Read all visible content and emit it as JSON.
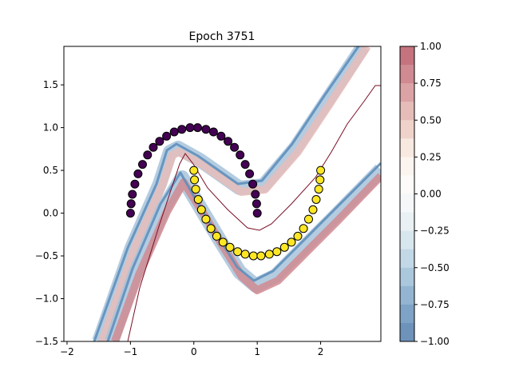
{
  "chart_data": [
    {
      "type": "scatter",
      "title": "Epoch 3751",
      "xlabel": "",
      "ylabel": "",
      "xlim": [
        -2.05,
        2.95
      ],
      "ylim": [
        -1.5,
        1.95
      ],
      "xticks": [
        -2,
        -1,
        0,
        1,
        2
      ],
      "yticks": [
        -1.5,
        -1.0,
        -0.5,
        0.0,
        0.5,
        1.0,
        1.5
      ],
      "xtick_labels": [
        "−2",
        "−1",
        "0",
        "1",
        "2"
      ],
      "ytick_labels": [
        "−1.5",
        "−1.0",
        "−0.5",
        "0.0",
        "0.5",
        "1.0",
        "1.5"
      ],
      "grid": false,
      "background": "contour of decision function (RdBu colormap, alpha), with a zero-level boundary line",
      "series": [
        {
          "class": 0,
          "color": "#440154",
          "shape": "upper half-moon",
          "points": [
            [
              -1.0,
              0.0
            ],
            [
              -0.99,
              0.11
            ],
            [
              -0.97,
              0.22
            ],
            [
              -0.93,
              0.34
            ],
            [
              -0.88,
              0.46
            ],
            [
              -0.81,
              0.57
            ],
            [
              -0.73,
              0.68
            ],
            [
              -0.64,
              0.77
            ],
            [
              -0.54,
              0.84
            ],
            [
              -0.43,
              0.9
            ],
            [
              -0.31,
              0.95
            ],
            [
              -0.19,
              0.98
            ],
            [
              -0.06,
              1.0
            ],
            [
              0.06,
              1.0
            ],
            [
              0.19,
              0.98
            ],
            [
              0.31,
              0.95
            ],
            [
              0.43,
              0.9
            ],
            [
              0.54,
              0.84
            ],
            [
              0.64,
              0.77
            ],
            [
              0.73,
              0.68
            ],
            [
              0.81,
              0.57
            ],
            [
              0.88,
              0.46
            ],
            [
              0.93,
              0.34
            ],
            [
              0.97,
              0.22
            ],
            [
              0.99,
              0.11
            ],
            [
              1.0,
              0.0
            ]
          ]
        },
        {
          "class": 1,
          "color": "#fde725",
          "shape": "lower half-moon",
          "points": [
            [
              0.0,
              0.5
            ],
            [
              0.01,
              0.39
            ],
            [
              0.03,
              0.28
            ],
            [
              0.07,
              0.16
            ],
            [
              0.12,
              0.04
            ],
            [
              0.19,
              -0.07
            ],
            [
              0.27,
              -0.18
            ],
            [
              0.36,
              -0.27
            ],
            [
              0.46,
              -0.34
            ],
            [
              0.57,
              -0.4
            ],
            [
              0.69,
              -0.45
            ],
            [
              0.81,
              -0.48
            ],
            [
              0.94,
              -0.5
            ],
            [
              1.06,
              -0.5
            ],
            [
              1.19,
              -0.48
            ],
            [
              1.31,
              -0.45
            ],
            [
              1.43,
              -0.4
            ],
            [
              1.54,
              -0.34
            ],
            [
              1.64,
              -0.27
            ],
            [
              1.73,
              -0.18
            ],
            [
              1.81,
              -0.07
            ],
            [
              1.88,
              0.04
            ],
            [
              1.93,
              0.16
            ],
            [
              1.97,
              0.28
            ],
            [
              1.99,
              0.39
            ],
            [
              2.0,
              0.5
            ]
          ]
        }
      ]
    },
    {
      "type": "colorbar",
      "range": [
        -1.0,
        1.0
      ],
      "ticks": [
        1.0,
        0.75,
        0.5,
        0.25,
        0.0,
        -0.25,
        -0.5,
        -0.75,
        -1.0
      ],
      "tick_labels": [
        "1.00",
        "0.75",
        "0.50",
        "0.25",
        "0.00",
        "−0.25",
        "−0.50",
        "−0.75",
        "−1.00"
      ],
      "band_colors": [
        "#c5747f",
        "#d08a91",
        "#dba3a5",
        "#e6bcb8",
        "#efd3cb",
        "#f7e8e0",
        "#fbf4ef",
        "#fdfbf9",
        "#f5f7f9",
        "#e9f1f5",
        "#d8e6ee",
        "#c3d8e6",
        "#abc7dc",
        "#93b5d1",
        "#7ea3c6",
        "#6e93bb"
      ]
    }
  ]
}
